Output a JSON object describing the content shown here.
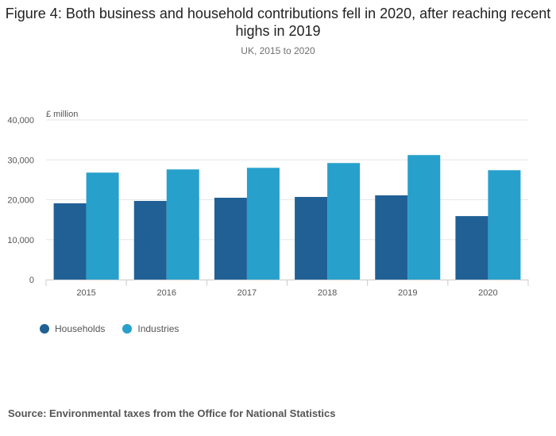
{
  "title": "Figure 4: Both business and household contributions fell in 2020, after reaching recent highs in 2019",
  "subtitle": "UK, 2015 to 2020",
  "source": "Source: Environmental taxes from the Office for National Statistics",
  "chart_data": {
    "type": "bar",
    "title": "Figure 4: Both business and household contributions fell in 2020, after reaching recent highs in 2019",
    "subtitle": "UK, 2015 to 2020",
    "ylabel": "£ million",
    "xlabel": "",
    "ylim": [
      0,
      40000
    ],
    "yticks": [
      0,
      10000,
      20000,
      30000,
      40000
    ],
    "ytick_labels": [
      "0",
      "10,000",
      "20,000",
      "30,000",
      "40,000"
    ],
    "grid": true,
    "legend_position": "bottom-left",
    "categories": [
      "2015",
      "2016",
      "2017",
      "2018",
      "2019",
      "2020"
    ],
    "series": [
      {
        "name": "Households",
        "color": "#206095",
        "values": [
          19100,
          19700,
          20500,
          20700,
          21100,
          15900
        ]
      },
      {
        "name": "Industries",
        "color": "#27a0cc",
        "values": [
          26800,
          27600,
          28000,
          29200,
          31200,
          27400
        ]
      }
    ]
  }
}
